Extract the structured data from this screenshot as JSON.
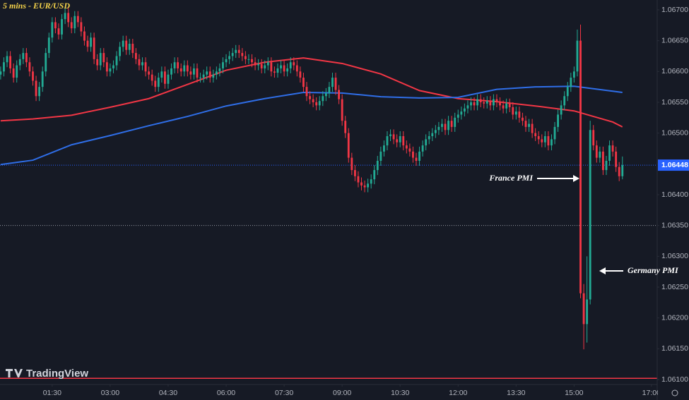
{
  "chart_data": {
    "type": "candlestick",
    "title": "5 mins - EUR/USD",
    "logo": "TradingView",
    "up_color": "#22ab94",
    "down_color": "#f23645",
    "x": [
      10,
      15,
      20,
      25,
      30,
      35,
      40,
      45,
      50,
      55,
      60,
      65,
      70,
      75,
      80,
      85,
      90,
      95,
      100,
      105,
      110,
      115,
      120,
      125,
      130,
      135,
      140,
      145,
      150,
      155,
      160,
      165,
      170,
      175,
      180,
      185,
      190,
      195,
      200,
      205,
      210,
      215,
      220,
      225,
      230,
      235,
      240,
      245,
      250,
      255,
      260,
      265,
      270,
      275,
      280,
      285,
      290,
      295,
      300,
      305,
      310,
      315,
      320,
      325,
      330,
      335,
      340,
      345,
      350,
      355,
      360,
      365,
      370,
      375,
      380,
      385,
      390,
      395,
      400,
      405,
      410,
      415,
      420,
      425,
      430,
      435,
      440,
      445,
      450,
      455,
      460,
      465,
      470,
      475,
      480,
      485,
      490,
      495,
      500,
      505,
      510,
      515,
      520,
      525,
      530,
      535,
      540,
      545,
      550,
      555,
      560,
      565,
      570,
      575,
      580,
      585,
      590,
      595,
      600,
      605,
      610,
      615,
      620,
      625,
      630,
      635,
      640,
      645,
      650,
      655,
      660,
      665,
      670,
      675,
      680,
      685,
      690,
      695,
      700,
      705,
      710,
      715,
      720,
      725,
      730,
      735,
      740,
      745,
      750,
      755,
      760,
      765,
      770,
      775,
      780,
      785,
      790,
      795,
      800,
      805,
      810,
      815,
      820,
      825,
      830,
      835,
      840,
      845,
      850,
      855,
      860,
      865,
      870,
      875,
      880,
      885,
      890,
      895,
      900,
      905,
      910,
      915,
      920,
      925,
      930,
      935,
      940,
      945,
      950,
      955,
      960,
      965,
      970,
      975
    ],
    "open": [
      1.06595,
      1.066,
      1.06615,
      1.06625,
      1.06605,
      1.0659,
      1.0661,
      1.0662,
      1.0663,
      1.06615,
      1.066,
      1.06585,
      1.0656,
      1.06575,
      1.066,
      1.0663,
      1.06655,
      1.0668,
      1.0667,
      1.0666,
      1.06685,
      1.06695,
      1.0668,
      1.0667,
      1.0669,
      1.0668,
      1.06665,
      1.0665,
      1.0664,
      1.06655,
      1.0662,
      1.0661,
      1.0663,
      1.06615,
      1.066,
      1.06605,
      1.0661,
      1.06625,
      1.0664,
      1.0665,
      1.06635,
      1.06645,
      1.0663,
      1.0662,
      1.0661,
      1.06615,
      1.066,
      1.06595,
      1.06585,
      1.06575,
      1.0659,
      1.066,
      1.0658,
      1.06595,
      1.06605,
      1.06615,
      1.06605,
      1.066,
      1.0661,
      1.066,
      1.06595,
      1.06605,
      1.0659,
      1.0659,
      1.06595,
      1.066,
      1.0659,
      1.06595,
      1.066,
      1.06605,
      1.06615,
      1.0662,
      1.06625,
      1.0663,
      1.06635,
      1.0663,
      1.06625,
      1.0662,
      1.0662,
      1.06615,
      1.0661,
      1.06612,
      1.06605,
      1.0661,
      1.06615,
      1.066,
      1.06598,
      1.06605,
      1.0661,
      1.066,
      1.06605,
      1.06615,
      1.0661,
      1.066,
      1.0659,
      1.06575,
      1.0656,
      1.06555,
      1.0655,
      1.06545,
      1.06552,
      1.0656,
      1.06565,
      1.06575,
      1.0659,
      1.0657,
      1.06555,
      1.0652,
      1.065,
      1.0646,
      1.0644,
      1.0643,
      1.0642,
      1.06415,
      1.06412,
      1.06418,
      1.06425,
      1.0644,
      1.06455,
      1.0647,
      1.0648,
      1.06495,
      1.06498,
      1.0649,
      1.06485,
      1.06495,
      1.0648,
      1.06475,
      1.0647,
      1.0646,
      1.06455,
      1.0647,
      1.0648,
      1.0649,
      1.06495,
      1.065,
      1.06505,
      1.0651,
      1.06515,
      1.06505,
      1.0652,
      1.0651,
      1.06525,
      1.0653,
      1.06535,
      1.0654,
      1.06545,
      1.0655,
      1.06545,
      1.06555,
      1.0655,
      1.06548,
      1.06552,
      1.06545,
      1.06555,
      1.0655,
      1.06545,
      1.0654,
      1.06548,
      1.06542,
      1.0653,
      1.06535,
      1.06525,
      1.0652,
      1.0651,
      1.06515,
      1.065,
      1.06495,
      1.0649,
      1.06485,
      1.06495,
      1.0648,
      1.0649,
      1.0651,
      1.0653,
      1.06545,
      1.0656,
      1.06575,
      1.0659,
      1.066,
      1.0665,
      1.0624,
      1.0619,
      1.0623,
      1.06505,
      1.0648,
      1.0646,
      1.0647,
      1.0644,
      1.06455,
      1.0648,
      1.0647,
      1.06445,
      1.0643
    ],
    "high": [
      1.06608,
      1.06623,
      1.06633,
      1.06633,
      1.06613,
      1.06618,
      1.06628,
      1.06638,
      1.06638,
      1.06623,
      1.06608,
      1.06593,
      1.06583,
      1.06608,
      1.06638,
      1.06663,
      1.06688,
      1.06688,
      1.06678,
      1.06693,
      1.06703,
      1.06703,
      1.06688,
      1.06698,
      1.06698,
      1.06688,
      1.06673,
      1.06658,
      1.06663,
      1.06663,
      1.06628,
      1.06638,
      1.06638,
      1.06623,
      1.06613,
      1.06618,
      1.06633,
      1.06648,
      1.06658,
      1.06658,
      1.06653,
      1.06653,
      1.06638,
      1.06628,
      1.06623,
      1.06623,
      1.06608,
      1.06603,
      1.06593,
      1.06598,
      1.06608,
      1.06608,
      1.06603,
      1.06613,
      1.06623,
      1.06623,
      1.06613,
      1.06618,
      1.06618,
      1.06608,
      1.06613,
      1.06613,
      1.06598,
      1.06603,
      1.06608,
      1.06608,
      1.06603,
      1.06608,
      1.06613,
      1.06623,
      1.06628,
      1.06633,
      1.06638,
      1.06643,
      1.06643,
      1.06638,
      1.06633,
      1.06628,
      1.06628,
      1.06623,
      1.0662,
      1.0662,
      1.06618,
      1.06623,
      1.06623,
      1.06608,
      1.06613,
      1.06618,
      1.06618,
      1.06613,
      1.06623,
      1.06623,
      1.06618,
      1.06608,
      1.06598,
      1.06583,
      1.06568,
      1.06563,
      1.06558,
      1.0656,
      1.06568,
      1.06573,
      1.06583,
      1.06598,
      1.06598,
      1.06578,
      1.06563,
      1.06528,
      1.06508,
      1.06468,
      1.06448,
      1.06438,
      1.06428,
      1.06423,
      1.06426,
      1.06433,
      1.06448,
      1.06463,
      1.06478,
      1.06488,
      1.06503,
      1.06506,
      1.06506,
      1.06498,
      1.06503,
      1.06503,
      1.06488,
      1.06483,
      1.06478,
      1.06468,
      1.06478,
      1.06488,
      1.06498,
      1.06503,
      1.06508,
      1.06513,
      1.06518,
      1.06523,
      1.06523,
      1.06528,
      1.06528,
      1.06533,
      1.06538,
      1.06543,
      1.06548,
      1.06553,
      1.06558,
      1.06558,
      1.06563,
      1.06563,
      1.06558,
      1.0656,
      1.0656,
      1.06563,
      1.06563,
      1.06558,
      1.06553,
      1.06556,
      1.06556,
      1.0655,
      1.06543,
      1.06543,
      1.06533,
      1.06528,
      1.06523,
      1.06523,
      1.06508,
      1.06503,
      1.06498,
      1.06503,
      1.06503,
      1.06498,
      1.06518,
      1.06538,
      1.06553,
      1.06568,
      1.06583,
      1.06598,
      1.06608,
      1.06668,
      1.06676,
      1.06255,
      1.063,
      1.0652,
      1.06513,
      1.06488,
      1.06478,
      1.06478,
      1.06463,
      1.06488,
      1.06488,
      1.06478,
      1.06453,
      1.06462
    ],
    "low": [
      1.06587,
      1.06592,
      1.06607,
      1.06597,
      1.06582,
      1.06582,
      1.06602,
      1.06612,
      1.06607,
      1.06592,
      1.06577,
      1.06552,
      1.06552,
      1.06567,
      1.06592,
      1.06622,
      1.06647,
      1.06662,
      1.06652,
      1.06652,
      1.06677,
      1.06672,
      1.06662,
      1.06662,
      1.06672,
      1.06657,
      1.06642,
      1.06632,
      1.06632,
      1.06612,
      1.06602,
      1.06602,
      1.06607,
      1.06592,
      1.06592,
      1.06597,
      1.06602,
      1.06617,
      1.06632,
      1.06627,
      1.06627,
      1.06622,
      1.06612,
      1.06602,
      1.06602,
      1.06592,
      1.06587,
      1.06577,
      1.06567,
      1.06567,
      1.06582,
      1.06572,
      1.06572,
      1.06587,
      1.06597,
      1.06597,
      1.06592,
      1.06592,
      1.06592,
      1.06587,
      1.06587,
      1.06582,
      1.06582,
      1.06582,
      1.06587,
      1.06582,
      1.06582,
      1.06587,
      1.06592,
      1.06597,
      1.06607,
      1.06612,
      1.06617,
      1.06622,
      1.06622,
      1.06617,
      1.06612,
      1.06612,
      1.06607,
      1.06602,
      1.06602,
      1.06597,
      1.06597,
      1.06602,
      1.06592,
      1.0659,
      1.0659,
      1.06597,
      1.06592,
      1.06592,
      1.06597,
      1.06602,
      1.06592,
      1.06582,
      1.06567,
      1.06552,
      1.06547,
      1.06542,
      1.06537,
      1.06537,
      1.06544,
      1.06552,
      1.06557,
      1.06567,
      1.06562,
      1.06547,
      1.06512,
      1.06492,
      1.06452,
      1.06432,
      1.06422,
      1.06412,
      1.06407,
      1.06404,
      1.06404,
      1.0641,
      1.06417,
      1.06432,
      1.06447,
      1.06462,
      1.06472,
      1.06487,
      1.06482,
      1.06477,
      1.06477,
      1.06472,
      1.06467,
      1.06462,
      1.06452,
      1.06447,
      1.06447,
      1.06462,
      1.06472,
      1.06482,
      1.06487,
      1.06492,
      1.06497,
      1.06502,
      1.06497,
      1.06497,
      1.06502,
      1.06502,
      1.06517,
      1.06522,
      1.06527,
      1.06532,
      1.06537,
      1.06537,
      1.06537,
      1.06542,
      1.0654,
      1.0654,
      1.06537,
      1.06537,
      1.06542,
      1.06537,
      1.06532,
      1.06532,
      1.06534,
      1.06522,
      1.06522,
      1.06517,
      1.06512,
      1.06502,
      1.06502,
      1.06492,
      1.06487,
      1.06482,
      1.06477,
      1.06477,
      1.06472,
      1.06472,
      1.06482,
      1.06502,
      1.06522,
      1.06537,
      1.06552,
      1.06567,
      1.06582,
      1.06592,
      1.06232,
      1.06149,
      1.0616,
      1.06222,
      1.06472,
      1.06452,
      1.06452,
      1.06432,
      1.06432,
      1.06447,
      1.06462,
      1.06437,
      1.06422,
      1.06425
    ],
    "close": [
      1.066,
      1.06615,
      1.06625,
      1.06605,
      1.0659,
      1.0661,
      1.0662,
      1.0663,
      1.06615,
      1.066,
      1.06585,
      1.0656,
      1.06575,
      1.066,
      1.0663,
      1.06655,
      1.0668,
      1.0667,
      1.0666,
      1.06685,
      1.06695,
      1.0668,
      1.0667,
      1.0669,
      1.0668,
      1.06665,
      1.0665,
      1.0664,
      1.06655,
      1.0662,
      1.0661,
      1.0663,
      1.06615,
      1.066,
      1.06605,
      1.0661,
      1.06625,
      1.0664,
      1.0665,
      1.06635,
      1.06645,
      1.0663,
      1.0662,
      1.0661,
      1.06615,
      1.066,
      1.06595,
      1.06585,
      1.06575,
      1.0659,
      1.066,
      1.0658,
      1.06595,
      1.06605,
      1.06615,
      1.06605,
      1.066,
      1.0661,
      1.066,
      1.06595,
      1.06605,
      1.0659,
      1.0659,
      1.06595,
      1.066,
      1.0659,
      1.06595,
      1.066,
      1.06605,
      1.06615,
      1.0662,
      1.06625,
      1.0663,
      1.06635,
      1.0663,
      1.06625,
      1.0662,
      1.0662,
      1.06615,
      1.0661,
      1.06612,
      1.06605,
      1.0661,
      1.06615,
      1.066,
      1.06598,
      1.06605,
      1.0661,
      1.066,
      1.06605,
      1.06615,
      1.0661,
      1.066,
      1.0659,
      1.06575,
      1.0656,
      1.06555,
      1.0655,
      1.06545,
      1.06552,
      1.0656,
      1.06565,
      1.06575,
      1.0659,
      1.0657,
      1.06555,
      1.0652,
      1.065,
      1.0646,
      1.0644,
      1.0643,
      1.0642,
      1.06415,
      1.06412,
      1.06418,
      1.06425,
      1.0644,
      1.06455,
      1.0647,
      1.0648,
      1.06495,
      1.06498,
      1.0649,
      1.06485,
      1.06495,
      1.0648,
      1.06475,
      1.0647,
      1.0646,
      1.06455,
      1.0647,
      1.0648,
      1.0649,
      1.06495,
      1.065,
      1.06505,
      1.0651,
      1.06515,
      1.06505,
      1.0652,
      1.0651,
      1.06525,
      1.0653,
      1.06535,
      1.0654,
      1.06545,
      1.0655,
      1.06545,
      1.06555,
      1.0655,
      1.06548,
      1.06552,
      1.06545,
      1.06555,
      1.0655,
      1.06545,
      1.0654,
      1.06548,
      1.06542,
      1.0653,
      1.06535,
      1.06525,
      1.0652,
      1.0651,
      1.06515,
      1.065,
      1.06495,
      1.0649,
      1.06485,
      1.06495,
      1.0648,
      1.0649,
      1.0651,
      1.0653,
      1.06545,
      1.0656,
      1.06575,
      1.0659,
      1.066,
      1.0665,
      1.0624,
      1.0619,
      1.0623,
      1.06505,
      1.0648,
      1.0646,
      1.0647,
      1.0644,
      1.06455,
      1.0648,
      1.0647,
      1.06445,
      1.0643,
      1.06448
    ],
    "moving_averages": [
      {
        "color": "#f23645",
        "x": [
          10,
          60,
          120,
          180,
          240,
          300,
          360,
          420,
          480,
          540,
          600,
          660,
          720,
          780,
          840,
          900,
          960,
          975
        ],
        "values": [
          1.0652,
          1.06523,
          1.06529,
          1.06542,
          1.06556,
          1.06579,
          1.06602,
          1.06615,
          1.06622,
          1.06613,
          1.06596,
          1.06569,
          1.06556,
          1.06551,
          1.06544,
          1.06536,
          1.06518,
          1.0651
        ]
      },
      {
        "color": "#2f6ee8",
        "x": [
          10,
          60,
          120,
          180,
          240,
          300,
          360,
          420,
          480,
          540,
          600,
          660,
          720,
          780,
          840,
          900,
          960,
          975
        ],
        "values": [
          1.06449,
          1.06456,
          1.06481,
          1.06496,
          1.06512,
          1.06527,
          1.06544,
          1.06556,
          1.06566,
          1.06565,
          1.06559,
          1.06557,
          1.06558,
          1.06571,
          1.06575,
          1.06576,
          1.06568,
          1.06566
        ]
      }
    ],
    "last_price": 1.06448,
    "last_price_color": "#2962ff",
    "horizontal_lines": [
      {
        "value": 1.0635,
        "color": "#9598a1"
      },
      {
        "value": 1.06102,
        "color": "#f23645"
      }
    ],
    "annotations": [
      "France PMI",
      "Germany PMI"
    ],
    "xlim": [
      9,
      1029
    ],
    "xticks": [
      {
        "value": 90,
        "label": "01:30"
      },
      {
        "value": 180,
        "label": "03:00"
      },
      {
        "value": 270,
        "label": "04:30"
      },
      {
        "value": 360,
        "label": "06:00"
      },
      {
        "value": 450,
        "label": "07:30"
      },
      {
        "value": 540,
        "label": "09:00"
      },
      {
        "value": 630,
        "label": "10:30"
      },
      {
        "value": 720,
        "label": "12:00"
      },
      {
        "value": 810,
        "label": "13:30"
      },
      {
        "value": 900,
        "label": "15:00"
      },
      {
        "value": 1020,
        "label": "17:00"
      }
    ],
    "ylim": [
      1.06092,
      1.06716
    ],
    "yticks": [
      {
        "value": 1.061,
        "label": "1.06100"
      },
      {
        "value": 1.0615,
        "label": "1.06150"
      },
      {
        "value": 1.062,
        "label": "1.06200"
      },
      {
        "value": 1.0625,
        "label": "1.06250"
      },
      {
        "value": 1.063,
        "label": "1.06300"
      },
      {
        "value": 1.0635,
        "label": "1.06350"
      },
      {
        "value": 1.064,
        "label": "1.06400"
      },
      {
        "value": 1.0645,
        "label": "1.06450"
      },
      {
        "value": 1.065,
        "label": "1.06500"
      },
      {
        "value": 1.0655,
        "label": "1.06550"
      },
      {
        "value": 1.066,
        "label": "1.06600"
      },
      {
        "value": 1.0665,
        "label": "1.06650"
      },
      {
        "value": 1.067,
        "label": "1.06700"
      }
    ],
    "grid": false
  }
}
